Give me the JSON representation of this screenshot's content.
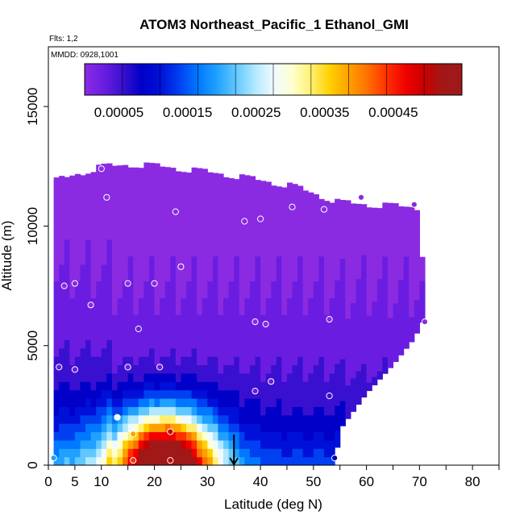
{
  "chart_data": {
    "type": "heatmap",
    "title": "ATOM3 Northeast_Pacific_1 Ethanol_GMI",
    "annotations": {
      "flights": "Flts: 1,2",
      "dates": "MMDD: 0928,1001"
    },
    "xlabel": "Latitude (deg N)",
    "ylabel": "Altitude (m)",
    "xlim": [
      0,
      85
    ],
    "ylim": [
      0,
      17500
    ],
    "x_ticks": [
      0,
      5,
      10,
      20,
      30,
      40,
      50,
      60,
      70,
      80
    ],
    "y_ticks": [
      0,
      5000,
      10000,
      15000
    ],
    "x_minor_ticks": [
      15,
      25,
      35,
      45,
      55,
      65,
      75,
      85
    ],
    "colorbar": {
      "vmin": 0.0,
      "vmax": 0.00055,
      "tick_values": [
        5e-05,
        0.00015,
        0.00025,
        0.00035,
        0.00045
      ],
      "tick_labels": [
        "0.00005",
        "0.00015",
        "0.00025",
        "0.00035",
        "0.00045"
      ],
      "colors": [
        "#8A2BE2",
        "#6A1DE0",
        "#3A10D0",
        "#0000C8",
        "#0010D8",
        "#0040F0",
        "#0078FF",
        "#20A0FF",
        "#60C8FF",
        "#B0E8FF",
        "#F0FAFF",
        "#FFFFD0",
        "#FFF070",
        "#FFD000",
        "#FFA000",
        "#FF7000",
        "#FF3000",
        "#F00000",
        "#C80000",
        "#A01818"
      ]
    },
    "field": {
      "lat_range": [
        1,
        71
      ],
      "envelope_top_m": [
        [
          1,
          12000
        ],
        [
          10,
          12600
        ],
        [
          16,
          12700
        ],
        [
          22,
          12600
        ],
        [
          33,
          12300
        ],
        [
          46,
          11800
        ],
        [
          55,
          11100
        ],
        [
          62,
          11000
        ],
        [
          70,
          10900
        ],
        [
          71,
          7000
        ]
      ],
      "envelope_bottom_m": [
        [
          1,
          0
        ],
        [
          54,
          0
        ],
        [
          55,
          1500
        ],
        [
          60,
          3000
        ],
        [
          65,
          4200
        ],
        [
          69,
          5300
        ],
        [
          71,
          6200
        ]
      ],
      "hotspot": {
        "lat": 22,
        "alt_m": 800,
        "value": 0.00052
      },
      "surface_low_lat_value": 0.00015,
      "upper_value": 1e-05
    },
    "observations": [
      {
        "lat": 1,
        "alt": 300,
        "v": 0.0002
      },
      {
        "lat": 2,
        "alt": 4100,
        "v": 5e-05
      },
      {
        "lat": 3,
        "alt": 7500,
        "v": 2e-05
      },
      {
        "lat": 5,
        "alt": 4000,
        "v": 5e-05
      },
      {
        "lat": 5,
        "alt": 7600,
        "v": 2e-05
      },
      {
        "lat": 8,
        "alt": 6700,
        "v": 2e-05
      },
      {
        "lat": 10,
        "alt": 12400,
        "v": 1e-05
      },
      {
        "lat": 11,
        "alt": 11200,
        "v": 1e-05
      },
      {
        "lat": 13,
        "alt": 2000,
        "v": 0.0003
      },
      {
        "lat": 15,
        "alt": 4100,
        "v": 5e-05
      },
      {
        "lat": 16,
        "alt": 1300,
        "v": 0.0004
      },
      {
        "lat": 17,
        "alt": 5700,
        "v": 3e-05
      },
      {
        "lat": 15,
        "alt": 7600,
        "v": 2e-05
      },
      {
        "lat": 16,
        "alt": 200,
        "v": 0.00045
      },
      {
        "lat": 20,
        "alt": 7600,
        "v": 2e-05
      },
      {
        "lat": 21,
        "alt": 4100,
        "v": 5e-05
      },
      {
        "lat": 23,
        "alt": 1400,
        "v": 0.0005
      },
      {
        "lat": 23,
        "alt": 200,
        "v": 0.0005
      },
      {
        "lat": 24,
        "alt": 10600,
        "v": 1e-05
      },
      {
        "lat": 25,
        "alt": 8300,
        "v": 1e-05
      },
      {
        "lat": 37,
        "alt": 10200,
        "v": 1e-05
      },
      {
        "lat": 39,
        "alt": 6000,
        "v": 2e-05
      },
      {
        "lat": 39,
        "alt": 3100,
        "v": 5e-05
      },
      {
        "lat": 40,
        "alt": 10300,
        "v": 1e-05
      },
      {
        "lat": 41,
        "alt": 5900,
        "v": 2e-05
      },
      {
        "lat": 42,
        "alt": 3500,
        "v": 5e-05
      },
      {
        "lat": 46,
        "alt": 10800,
        "v": 1e-05
      },
      {
        "lat": 52,
        "alt": 10700,
        "v": 1e-05
      },
      {
        "lat": 53,
        "alt": 6100,
        "v": 2e-05
      },
      {
        "lat": 53,
        "alt": 2900,
        "v": 6e-05
      },
      {
        "lat": 54,
        "alt": 300,
        "v": 0.0001
      },
      {
        "lat": 59,
        "alt": 11200,
        "v": 1e-05
      },
      {
        "lat": 69,
        "alt": 10900,
        "v": 1e-05
      },
      {
        "lat": 71,
        "alt": 6000,
        "v": 2e-05
      }
    ],
    "marker_arrow_lat": 35
  }
}
